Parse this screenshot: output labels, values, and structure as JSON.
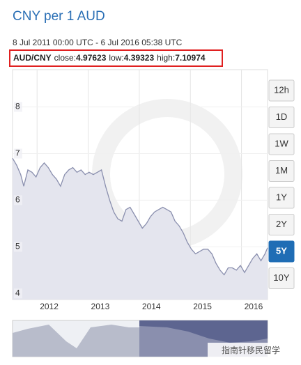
{
  "chart_data": {
    "type": "area",
    "title": "CNY per 1 AUD",
    "subtitle": "8 Jul 2011 00:00 UTC - 6 Jul 2016 05:38 UTC",
    "pair": "AUD/CNY",
    "stats": [
      {
        "label": "close:",
        "value": 4.97623
      },
      {
        "label": "low:",
        "value": 4.39323
      },
      {
        "label": "high:",
        "value": 7.10974
      }
    ],
    "color": "#8a8fae",
    "x": [
      2011.52,
      2011.6,
      2011.68,
      2011.74,
      2011.82,
      2011.9,
      2011.98,
      2012.06,
      2012.14,
      2012.22,
      2012.3,
      2012.38,
      2012.46,
      2012.54,
      2012.62,
      2012.7,
      2012.78,
      2012.86,
      2012.94,
      2013.02,
      2013.1,
      2013.18,
      2013.26,
      2013.34,
      2013.42,
      2013.5,
      2013.58,
      2013.66,
      2013.74,
      2013.82,
      2013.9,
      2013.98,
      2014.06,
      2014.14,
      2014.22,
      2014.3,
      2014.38,
      2014.46,
      2014.54,
      2014.62,
      2014.7,
      2014.78,
      2014.86,
      2014.94,
      2015.02,
      2015.1,
      2015.18,
      2015.26,
      2015.34,
      2015.42,
      2015.5,
      2015.58,
      2015.66,
      2015.74,
      2015.82,
      2015.9,
      2015.98,
      2016.06,
      2016.14,
      2016.22,
      2016.3,
      2016.38,
      2016.46,
      2016.51
    ],
    "values": [
      6.9,
      6.75,
      6.55,
      6.3,
      6.65,
      6.6,
      6.5,
      6.7,
      6.8,
      6.7,
      6.55,
      6.45,
      6.3,
      6.55,
      6.65,
      6.7,
      6.6,
      6.65,
      6.55,
      6.6,
      6.55,
      6.6,
      6.65,
      6.3,
      6.0,
      5.75,
      5.6,
      5.55,
      5.8,
      5.85,
      5.7,
      5.55,
      5.4,
      5.5,
      5.65,
      5.75,
      5.8,
      5.85,
      5.8,
      5.75,
      5.55,
      5.45,
      5.3,
      5.1,
      4.95,
      4.85,
      4.9,
      4.95,
      4.95,
      4.85,
      4.65,
      4.5,
      4.4,
      4.55,
      4.55,
      4.5,
      4.6,
      4.45,
      4.6,
      4.75,
      4.85,
      4.7,
      4.85,
      4.98
    ],
    "xlim": [
      2011.52,
      2016.51
    ],
    "xticks": [
      2012,
      2013,
      2014,
      2015,
      2016
    ],
    "ylim": [
      3.87,
      8.8
    ],
    "yticks": [
      4,
      5,
      6,
      7,
      8
    ],
    "grid": true,
    "range_buttons": [
      "12h",
      "1D",
      "1W",
      "1M",
      "1Y",
      "2Y",
      "5Y",
      "10Y"
    ],
    "selected_range": 6,
    "watermark": "指南针移民留学"
  }
}
